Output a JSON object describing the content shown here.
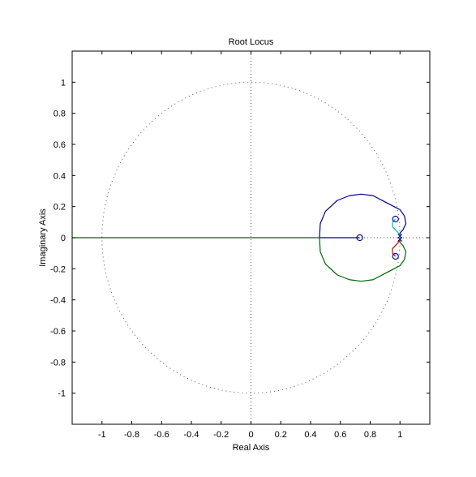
{
  "chart_data": {
    "type": "line",
    "title": "Root Locus",
    "xlabel": "Real Axis",
    "ylabel": "Imaginary Axis",
    "xlim": [
      -1.2,
      1.2
    ],
    "ylim": [
      -1.2,
      1.2
    ],
    "xticks": [
      -1,
      -0.8,
      -0.6,
      -0.4,
      -0.2,
      0,
      0.2,
      0.4,
      0.6,
      0.8,
      1
    ],
    "xtick_labels": [
      "-1",
      "-0.8",
      "-0.6",
      "-0.4",
      "-0.2",
      "0",
      "0.2",
      "0.4",
      "0.6",
      "0.8",
      "1"
    ],
    "yticks": [
      1,
      0.8,
      0.6,
      0.4,
      0.2,
      0,
      -0.2,
      -0.4,
      -0.6,
      -0.8,
      -1
    ],
    "ytick_labels": [
      "1",
      "0.8",
      "0.6",
      "0.4",
      "0.2",
      "0",
      "-0.2",
      "-0.4",
      "-0.6",
      "-0.8",
      "-1"
    ],
    "grid": false,
    "unit_circle": true,
    "zeros": [
      {
        "x": 0.73,
        "y": 0
      },
      {
        "x": 0.97,
        "y": 0.12
      },
      {
        "x": 0.97,
        "y": -0.12
      }
    ],
    "poles": [
      {
        "x": 1.0,
        "y": 0.01
      },
      {
        "x": 1.0,
        "y": -0.01
      }
    ],
    "series": [
      {
        "color": "#00008b",
        "points": [
          [
            0.73,
            0
          ],
          [
            0.64,
            0
          ],
          [
            0.55,
            0
          ],
          [
            0.46,
            0
          ],
          [
            0.465,
            0.09
          ],
          [
            0.5,
            0.17
          ],
          [
            0.58,
            0.24
          ],
          [
            0.66,
            0.27
          ],
          [
            0.74,
            0.28
          ],
          [
            0.82,
            0.27
          ],
          [
            0.9,
            0.23
          ],
          [
            0.96,
            0.2
          ],
          [
            1.0,
            0.18
          ],
          [
            1.03,
            0.14
          ],
          [
            1.04,
            0.09
          ],
          [
            1.02,
            0.05
          ],
          [
            1.0,
            0.03
          ],
          [
            1.0,
            0.01
          ]
        ]
      },
      {
        "color": "#006400",
        "points": [
          [
            -1.2,
            0
          ],
          [
            -0.8,
            0
          ],
          [
            -0.4,
            0
          ],
          [
            0,
            0
          ],
          [
            0.3,
            0
          ],
          [
            0.46,
            0
          ],
          [
            0.465,
            -0.09
          ],
          [
            0.5,
            -0.17
          ],
          [
            0.58,
            -0.24
          ],
          [
            0.66,
            -0.27
          ],
          [
            0.74,
            -0.28
          ],
          [
            0.82,
            -0.27
          ],
          [
            0.9,
            -0.23
          ],
          [
            0.96,
            -0.2
          ],
          [
            1.0,
            -0.18
          ],
          [
            1.03,
            -0.14
          ],
          [
            1.04,
            -0.09
          ],
          [
            1.02,
            -0.05
          ],
          [
            1.0,
            -0.03
          ],
          [
            1.0,
            -0.01
          ]
        ]
      },
      {
        "color": "#00bfbf",
        "points": [
          [
            0.97,
            0.12
          ],
          [
            0.95,
            0.1
          ],
          [
            0.95,
            0.07
          ],
          [
            0.97,
            0.05
          ],
          [
            0.99,
            0.03
          ],
          [
            1.0,
            0.01
          ]
        ]
      },
      {
        "color": "#cc0000",
        "points": [
          [
            0.97,
            -0.12
          ],
          [
            0.95,
            -0.1
          ],
          [
            0.95,
            -0.07
          ],
          [
            0.97,
            -0.05
          ],
          [
            0.99,
            -0.03
          ],
          [
            1.0,
            -0.01
          ]
        ]
      }
    ]
  }
}
